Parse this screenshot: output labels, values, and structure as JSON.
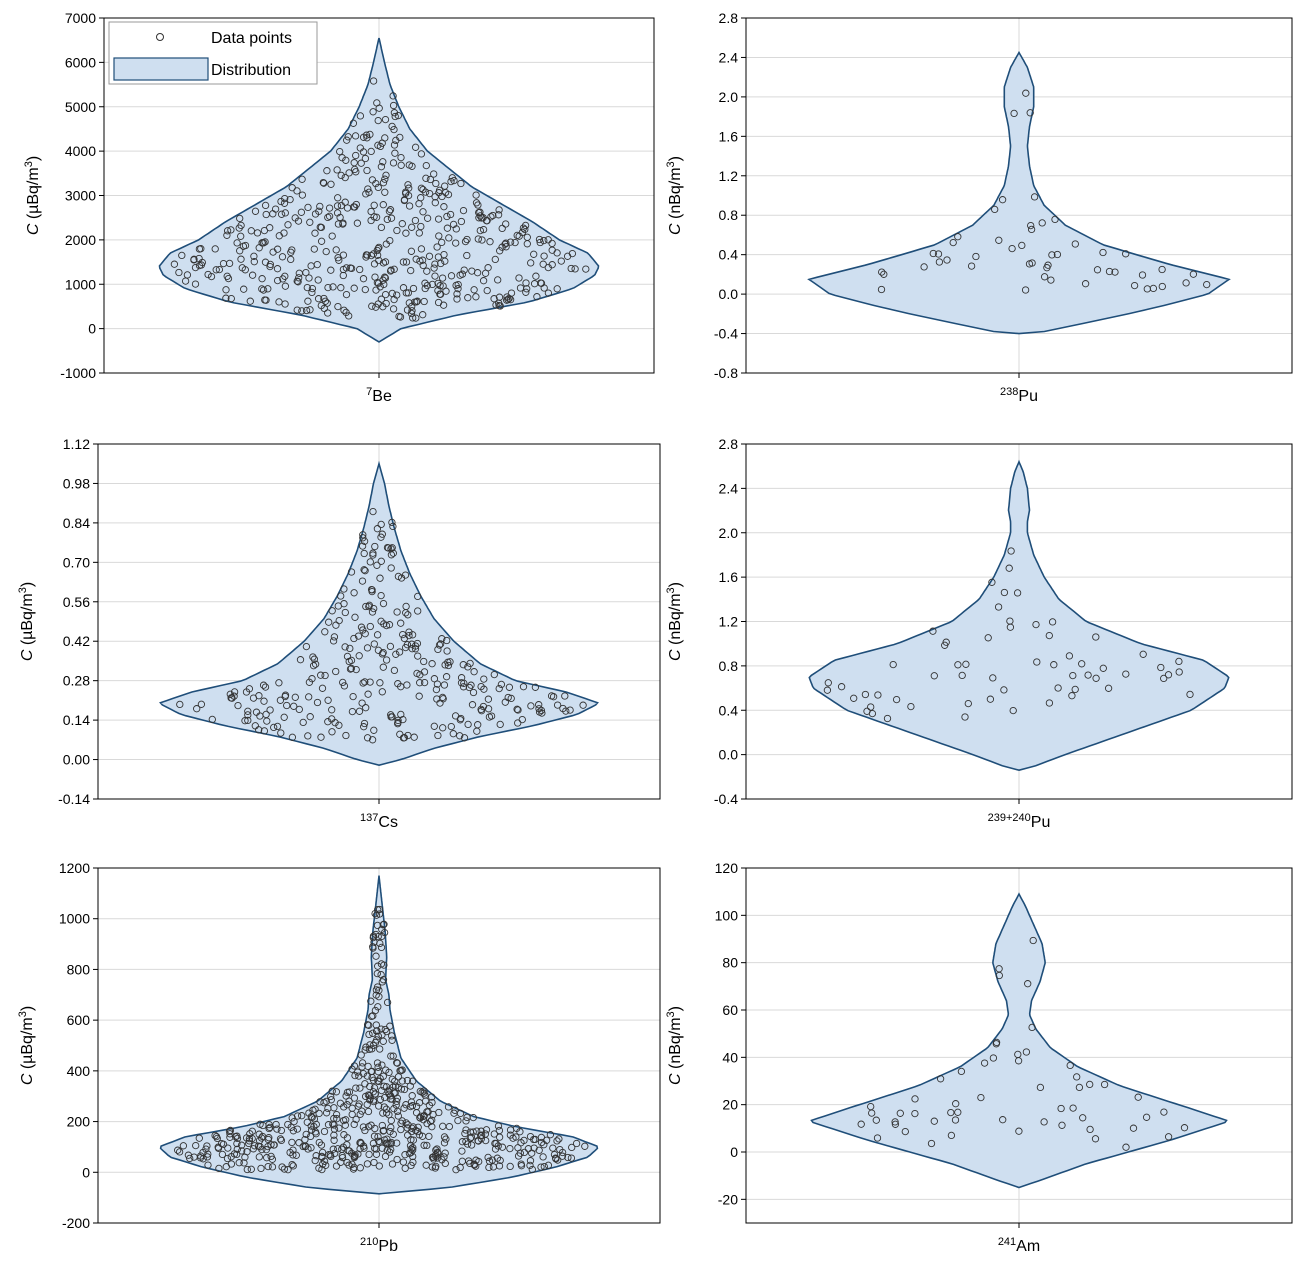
{
  "colors": {
    "violin_fill": "#cfdff0",
    "violin_edge": "#1f4e79",
    "grid": "#d9d9d9",
    "point_edge": "#333333"
  },
  "legend": {
    "points_label": "Data points",
    "distribution_label": "Distribution",
    "placement": "top-left of first panel"
  },
  "chart_data": [
    {
      "type": "violin",
      "panel": "7Be",
      "xlabel": {
        "sup": "7",
        "base": "Be"
      },
      "ylabel": {
        "var": "C",
        "unit_pre": " (µBq/m",
        "unit_sup": "3",
        "unit_post": ")"
      },
      "ylim": [
        -1000,
        7000
      ],
      "yticks": [
        -1000,
        0,
        1000,
        2000,
        3000,
        4000,
        5000,
        6000,
        7000
      ],
      "decimals": 0,
      "grid": true,
      "profile": [
        [
          -300,
          0.0
        ],
        [
          0,
          0.1
        ],
        [
          300,
          0.35
        ],
        [
          600,
          0.68
        ],
        [
          900,
          0.88
        ],
        [
          1200,
          0.98
        ],
        [
          1400,
          1.0
        ],
        [
          1700,
          0.95
        ],
        [
          2000,
          0.82
        ],
        [
          2400,
          0.7
        ],
        [
          2800,
          0.56
        ],
        [
          3200,
          0.42
        ],
        [
          3600,
          0.32
        ],
        [
          4000,
          0.22
        ],
        [
          4500,
          0.14
        ],
        [
          5000,
          0.09
        ],
        [
          5500,
          0.05
        ],
        [
          6000,
          0.025
        ],
        [
          6550,
          0.0
        ]
      ],
      "n_points": 500,
      "range": [
        200,
        5700
      ]
    },
    {
      "type": "violin",
      "panel": "238Pu",
      "xlabel": {
        "sup": "238",
        "base": "Pu"
      },
      "ylabel": {
        "var": "C",
        "unit_pre": " (nBq/m",
        "unit_sup": "3",
        "unit_post": ")"
      },
      "ylim": [
        -0.8,
        2.8
      ],
      "yticks": [
        -0.8,
        -0.4,
        0.0,
        0.4,
        0.8,
        1.2,
        1.6,
        2.0,
        2.4,
        2.8
      ],
      "decimals": 1,
      "grid": true,
      "profile": [
        [
          -0.4,
          0.0
        ],
        [
          -0.38,
          0.12
        ],
        [
          -0.3,
          0.3
        ],
        [
          -0.2,
          0.52
        ],
        [
          -0.1,
          0.72
        ],
        [
          0.0,
          0.9
        ],
        [
          0.15,
          1.0
        ],
        [
          0.3,
          0.72
        ],
        [
          0.5,
          0.4
        ],
        [
          0.7,
          0.22
        ],
        [
          0.9,
          0.12
        ],
        [
          1.1,
          0.07
        ],
        [
          1.3,
          0.05
        ],
        [
          1.5,
          0.04
        ],
        [
          1.7,
          0.05
        ],
        [
          1.9,
          0.07
        ],
        [
          2.1,
          0.07
        ],
        [
          2.3,
          0.04
        ],
        [
          2.45,
          0.0
        ]
      ],
      "n_points": 50,
      "range": [
        0.02,
        2.04
      ]
    },
    {
      "type": "violin",
      "panel": "137Cs",
      "xlabel": {
        "sup": "137",
        "base": "Cs"
      },
      "ylabel": {
        "var": "C",
        "unit_pre": " (µBq/m",
        "unit_sup": "3",
        "unit_post": ")"
      },
      "ylim": [
        -0.14,
        1.12
      ],
      "yticks": [
        -0.14,
        0.0,
        0.14,
        0.28,
        0.42,
        0.56,
        0.7,
        0.84,
        0.98,
        1.12
      ],
      "decimals": 2,
      "grid": true,
      "profile": [
        [
          -0.02,
          0.0
        ],
        [
          0.0,
          0.1
        ],
        [
          0.04,
          0.25
        ],
        [
          0.08,
          0.45
        ],
        [
          0.12,
          0.7
        ],
        [
          0.16,
          0.9
        ],
        [
          0.2,
          1.0
        ],
        [
          0.24,
          0.85
        ],
        [
          0.28,
          0.62
        ],
        [
          0.34,
          0.46
        ],
        [
          0.42,
          0.34
        ],
        [
          0.5,
          0.25
        ],
        [
          0.58,
          0.19
        ],
        [
          0.66,
          0.14
        ],
        [
          0.74,
          0.1
        ],
        [
          0.82,
          0.07
        ],
        [
          0.9,
          0.045
        ],
        [
          0.98,
          0.025
        ],
        [
          1.05,
          0.0
        ]
      ],
      "n_points": 300,
      "range": [
        0.07,
        0.91
      ]
    },
    {
      "type": "violin",
      "panel": "239+240Pu",
      "xlabel": {
        "sup": "239+240",
        "base": "Pu"
      },
      "ylabel": {
        "var": "C",
        "unit_pre": " (nBq/m",
        "unit_sup": "3",
        "unit_post": ")"
      },
      "ylim": [
        -0.4,
        2.8
      ],
      "yticks": [
        -0.4,
        0.0,
        0.4,
        0.8,
        1.2,
        1.6,
        2.0,
        2.4,
        2.8
      ],
      "decimals": 1,
      "grid": true,
      "profile": [
        [
          -0.14,
          0.0
        ],
        [
          -0.1,
          0.08
        ],
        [
          0.0,
          0.22
        ],
        [
          0.2,
          0.52
        ],
        [
          0.4,
          0.82
        ],
        [
          0.6,
          0.98
        ],
        [
          0.7,
          1.0
        ],
        [
          0.85,
          0.88
        ],
        [
          1.0,
          0.58
        ],
        [
          1.2,
          0.32
        ],
        [
          1.4,
          0.19
        ],
        [
          1.6,
          0.12
        ],
        [
          1.8,
          0.07
        ],
        [
          2.0,
          0.04
        ],
        [
          2.1,
          0.04
        ],
        [
          2.2,
          0.05
        ],
        [
          2.4,
          0.04
        ],
        [
          2.55,
          0.02
        ],
        [
          2.64,
          0.0
        ]
      ],
      "n_points": 60,
      "range": [
        0.23,
        2.27
      ]
    },
    {
      "type": "violin",
      "panel": "210Pb",
      "xlabel": {
        "sup": "210",
        "base": "Pb"
      },
      "ylabel": {
        "var": "C",
        "unit_pre": " (µBq/m",
        "unit_sup": "3",
        "unit_post": ")"
      },
      "ylim": [
        -200,
        1200
      ],
      "yticks": [
        -200,
        0,
        200,
        400,
        600,
        800,
        1000,
        1200
      ],
      "decimals": 0,
      "grid": true,
      "profile": [
        [
          -85,
          0.0
        ],
        [
          -60,
          0.32
        ],
        [
          -20,
          0.6
        ],
        [
          20,
          0.8
        ],
        [
          60,
          0.95
        ],
        [
          100,
          1.0
        ],
        [
          140,
          0.88
        ],
        [
          180,
          0.62
        ],
        [
          220,
          0.43
        ],
        [
          280,
          0.28
        ],
        [
          360,
          0.17
        ],
        [
          450,
          0.1
        ],
        [
          550,
          0.07
        ],
        [
          640,
          0.05
        ],
        [
          700,
          0.045
        ],
        [
          760,
          0.03
        ],
        [
          850,
          0.035
        ],
        [
          950,
          0.028
        ],
        [
          1050,
          0.015
        ],
        [
          1170,
          0.0
        ]
      ],
      "n_points": 600,
      "range": [
        10,
        1080
      ]
    },
    {
      "type": "violin",
      "panel": "241Am",
      "xlabel": {
        "sup": "241",
        "base": "Am"
      },
      "ylabel": {
        "var": "C",
        "unit_pre": " (nBq/m",
        "unit_sup": "3",
        "unit_post": ")"
      },
      "ylim": [
        -30,
        120
      ],
      "yticks": [
        -20,
        0,
        20,
        40,
        60,
        80,
        100,
        120
      ],
      "decimals": 0,
      "grid": true,
      "profile": [
        [
          -15,
          0.0
        ],
        [
          -12,
          0.1
        ],
        [
          -5,
          0.32
        ],
        [
          5,
          0.72
        ],
        [
          13,
          1.0
        ],
        [
          20,
          0.76
        ],
        [
          28,
          0.48
        ],
        [
          36,
          0.28
        ],
        [
          44,
          0.15
        ],
        [
          52,
          0.08
        ],
        [
          58,
          0.05
        ],
        [
          64,
          0.06
        ],
        [
          72,
          0.1
        ],
        [
          80,
          0.125
        ],
        [
          88,
          0.11
        ],
        [
          96,
          0.07
        ],
        [
          104,
          0.03
        ],
        [
          109,
          0.0
        ]
      ],
      "n_points": 55,
      "range": [
        2,
        91
      ]
    }
  ]
}
